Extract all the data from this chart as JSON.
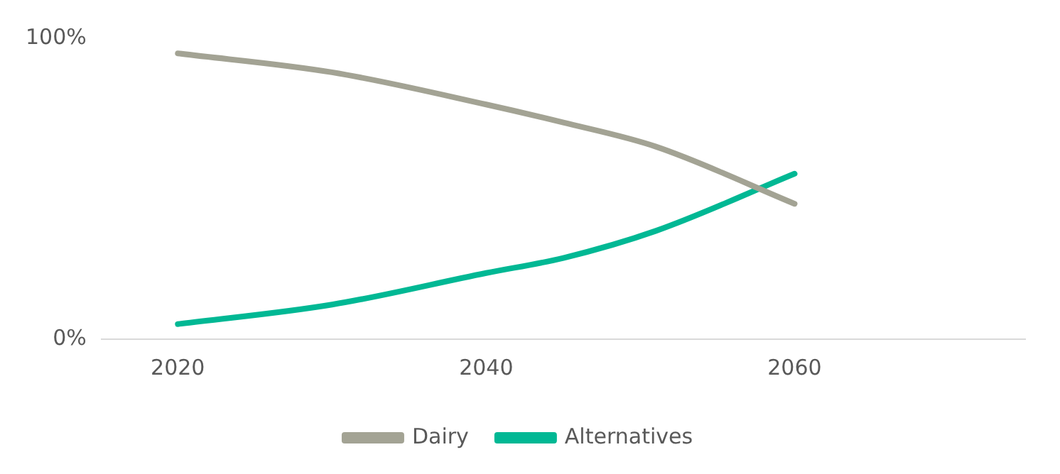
{
  "chart_data": {
    "type": "line",
    "x": [
      2020,
      2030,
      2040,
      2045,
      2051,
      2060
    ],
    "series": [
      {
        "name": "Dairy",
        "color": "#a3a394",
        "values": [
          95,
          88.7,
          78,
          72,
          64,
          45
        ]
      },
      {
        "name": "Alternatives",
        "color": "#00b894",
        "values": [
          5,
          11.5,
          22,
          27,
          36,
          55
        ]
      }
    ],
    "xlim": [
      2015,
      2075
    ],
    "xticks": [
      2020,
      2040,
      2060
    ],
    "ylim": [
      0,
      100
    ],
    "yticks": [
      {
        "value": 0,
        "label": "0%"
      },
      {
        "value": 100,
        "label": "100%"
      }
    ],
    "grid": false,
    "legend": "bottom",
    "marker": "none",
    "line_style": "solid"
  }
}
